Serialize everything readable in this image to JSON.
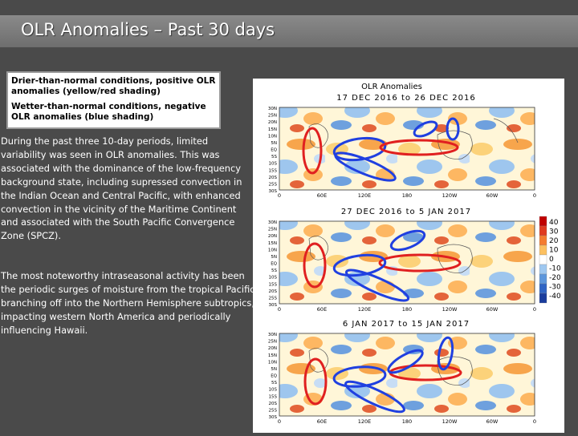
{
  "slide": {
    "title": "OLR Anomalies – Past 30 days",
    "legend": {
      "dry": "Drier-than-normal conditions, positive OLR anomalies (yellow/red shading)",
      "wet": "Wetter-than-normal conditions, negative OLR anomalies (blue shading)"
    },
    "paragraphs": [
      "During the past three 10-day periods, limited variability was seen in OLR anomalies.  This was associated with the dominance of the low-frequency background state, including supressed convection in the Indian Ocean and Central Pacific, with enhanced convection in the vicinity of the Maritime Continent and associated with the South Pacific Convergence Zone (SPCZ).",
      "The most noteworthy intraseasonal activity has been the periodic surges of moisture from the tropical Pacific branching off into the Northern Hemisphere subtropics, impacting western North America and periodically influencing Hawaii."
    ]
  },
  "figure": {
    "main_title": "OLR Anomalies",
    "panels": [
      {
        "period": "17 DEC 2016 to 26 DEC 2016"
      },
      {
        "period": "27 DEC 2016 to 5 JAN 2017"
      },
      {
        "period": "6 JAN 2017 to 15 JAN 2017"
      }
    ],
    "lat_labels": [
      "30N",
      "25N",
      "20N",
      "15N",
      "10N",
      "5N",
      "EQ",
      "5S",
      "10S",
      "15S",
      "20S",
      "25S",
      "30S"
    ],
    "lon_labels": [
      "0",
      "60E",
      "120E",
      "180",
      "120W",
      "60W",
      "0"
    ],
    "colorbar": {
      "labels": [
        "40",
        "30",
        "20",
        "10",
        "0",
        "-10",
        "-20",
        "-30",
        "-40"
      ],
      "colors": [
        "#c00000",
        "#e03a20",
        "#f47c30",
        "#fcc060",
        "#ffffff",
        "#9fc8f0",
        "#5c96dc",
        "#2f64c4",
        "#1a3c9c"
      ]
    },
    "annotation_colors": {
      "dry_outline": "#e02020",
      "wet_outline": "#2040e0"
    }
  }
}
